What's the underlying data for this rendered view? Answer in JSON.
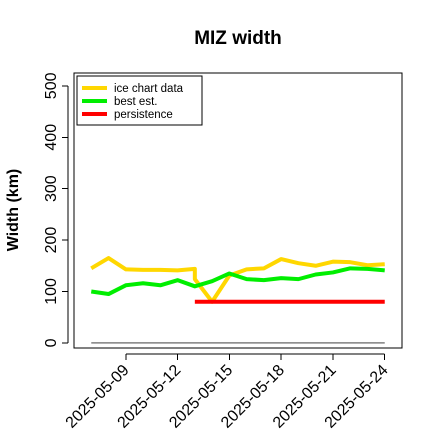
{
  "chart_data": {
    "type": "line",
    "title": "MIZ width",
    "xlabel": "",
    "ylabel": "Width (km)",
    "x_start": "2025-05-07",
    "x_end": "2025-05-24",
    "xlim": [
      "2025-05-06",
      "2025-05-25"
    ],
    "ylim": [
      -10,
      525
    ],
    "y_ticks": [
      0,
      100,
      200,
      300,
      400,
      500
    ],
    "x_ticks": [
      "2025-05-09",
      "2025-05-12",
      "2025-05-15",
      "2025-05-18",
      "2025-05-21",
      "2025-05-24"
    ],
    "grid": false,
    "legend_position": "top-left",
    "series": [
      {
        "name": "ice chart data",
        "color": "#FFD700",
        "x": [
          "2025-05-07",
          "2025-05-08",
          "2025-05-09",
          "2025-05-10",
          "2025-05-11",
          "2025-05-12",
          "2025-05-13",
          "2025-05-13",
          "2025-05-14",
          "2025-05-15",
          "2025-05-16",
          "2025-05-17",
          "2025-05-18",
          "2025-05-19",
          "2025-05-20",
          "2025-05-21",
          "2025-05-22",
          "2025-05-23",
          "2025-05-24"
        ],
        "values": [
          145,
          165,
          143,
          142,
          142,
          141,
          144,
          124,
          80,
          131,
          143,
          145,
          163,
          155,
          150,
          158,
          157,
          151,
          153
        ]
      },
      {
        "name": "best est.",
        "color": "#00EE00",
        "x": [
          "2025-05-07",
          "2025-05-08",
          "2025-05-09",
          "2025-05-10",
          "2025-05-11",
          "2025-05-12",
          "2025-05-13",
          "2025-05-14",
          "2025-05-15",
          "2025-05-16",
          "2025-05-17",
          "2025-05-18",
          "2025-05-19",
          "2025-05-20",
          "2025-05-21",
          "2025-05-22",
          "2025-05-23",
          "2025-05-24"
        ],
        "values": [
          100,
          95,
          112,
          116,
          112,
          122,
          110,
          120,
          135,
          124,
          122,
          126,
          124,
          133,
          137,
          145,
          144,
          141
        ]
      },
      {
        "name": "persistence",
        "color": "#FF0000",
        "x": [
          "2025-05-13",
          "2025-05-24"
        ],
        "values": [
          80,
          80
        ]
      },
      {
        "name": "",
        "color": "#808080",
        "x": [
          "2025-05-07",
          "2025-05-24"
        ],
        "values": [
          0,
          0
        ]
      }
    ]
  }
}
